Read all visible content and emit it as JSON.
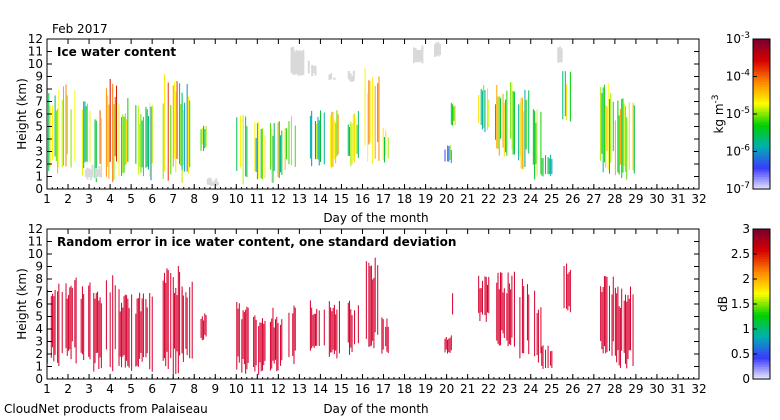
{
  "header": {
    "date": "Feb 2017"
  },
  "footer": {
    "credit": "CloudNet products from Palaiseau"
  },
  "chart_data": [
    {
      "type": "heatmap",
      "title": "Ice water content",
      "xlabel": "Day of the month",
      "ylabel": "Height (km)",
      "xlim": [
        1,
        32
      ],
      "ylim": [
        0,
        12
      ],
      "xticks": [
        1,
        2,
        3,
        4,
        5,
        6,
        7,
        8,
        9,
        10,
        11,
        12,
        13,
        14,
        15,
        16,
        17,
        18,
        19,
        20,
        21,
        22,
        23,
        24,
        25,
        26,
        27,
        28,
        29,
        30,
        31,
        32
      ],
      "yticks": [
        0,
        1,
        2,
        3,
        4,
        5,
        6,
        7,
        8,
        9,
        10,
        11,
        12
      ],
      "colorbar": {
        "units_base": "kg m",
        "units_exp": "-3",
        "scale": "log",
        "ticks": [
          {
            "base": "10",
            "exp": "-7"
          },
          {
            "base": "10",
            "exp": "-6"
          },
          {
            "base": "10",
            "exp": "-5"
          },
          {
            "base": "10",
            "exp": "-4"
          },
          {
            "base": "10",
            "exp": "-3"
          }
        ],
        "colors": [
          "#e8e8ff",
          "#3a3aff",
          "#00b0b0",
          "#00d000",
          "#ffff00",
          "#ff8800",
          "#d80000",
          "#7a0030"
        ]
      },
      "uncertain_color": "#d9d9d9",
      "cloud_events": [
        {
          "x0": 1.0,
          "x1": 1.6,
          "bottom": 0.9,
          "top": 8.2,
          "log_iwc": -5.0
        },
        {
          "x0": 1.7,
          "x1": 2.4,
          "bottom": 1.2,
          "top": 8.5,
          "log_iwc": -4.9
        },
        {
          "x0": 2.6,
          "x1": 3.1,
          "bottom": 1.0,
          "top": 8.0,
          "log_iwc": -5.1
        },
        {
          "x0": 3.2,
          "x1": 3.6,
          "bottom": 0.5,
          "top": 7.0,
          "log_iwc": -4.7
        },
        {
          "x0": 3.8,
          "x1": 4.3,
          "bottom": 0.4,
          "top": 9.3,
          "log_iwc": -4.3
        },
        {
          "x0": 4.4,
          "x1": 5.0,
          "bottom": 0.6,
          "top": 7.3,
          "log_iwc": -5.2
        },
        {
          "x0": 5.2,
          "x1": 6.0,
          "bottom": 0.5,
          "top": 7.0,
          "log_iwc": -5.4
        },
        {
          "x0": 6.5,
          "x1": 7.4,
          "bottom": 0.4,
          "top": 9.2,
          "log_iwc": -4.5
        },
        {
          "x0": 7.4,
          "x1": 7.9,
          "bottom": 1.2,
          "top": 8.4,
          "log_iwc": -5.3
        },
        {
          "x0": 8.3,
          "x1": 8.6,
          "bottom": 3.0,
          "top": 5.3,
          "log_iwc": -5.0
        },
        {
          "x0": 10.0,
          "x1": 10.6,
          "bottom": 0.3,
          "top": 6.5,
          "log_iwc": -4.8
        },
        {
          "x0": 10.8,
          "x1": 11.4,
          "bottom": 0.2,
          "top": 5.5,
          "log_iwc": -5.3
        },
        {
          "x0": 11.6,
          "x1": 12.2,
          "bottom": 0.2,
          "top": 5.8,
          "log_iwc": -5.1
        },
        {
          "x0": 12.3,
          "x1": 12.8,
          "bottom": 1.0,
          "top": 6.5,
          "log_iwc": -4.9
        },
        {
          "x0": 13.5,
          "x1": 14.2,
          "bottom": 1.8,
          "top": 6.5,
          "log_iwc": -5.4
        },
        {
          "x0": 14.4,
          "x1": 14.9,
          "bottom": 1.6,
          "top": 6.3,
          "log_iwc": -5.0
        },
        {
          "x0": 15.3,
          "x1": 15.8,
          "bottom": 1.8,
          "top": 6.3,
          "log_iwc": -5.2
        },
        {
          "x0": 16.1,
          "x1": 16.8,
          "bottom": 2.0,
          "top": 9.8,
          "log_iwc": -4.6
        },
        {
          "x0": 16.9,
          "x1": 17.2,
          "bottom": 2.0,
          "top": 5.0,
          "log_iwc": -5.3
        },
        {
          "x0": 19.9,
          "x1": 20.2,
          "bottom": 2.0,
          "top": 3.5,
          "log_iwc": -5.6
        },
        {
          "x0": 20.2,
          "x1": 20.4,
          "bottom": 5.0,
          "top": 7.0,
          "log_iwc": -5.0
        },
        {
          "x0": 21.5,
          "x1": 22.0,
          "bottom": 4.5,
          "top": 8.3,
          "log_iwc": -5.2
        },
        {
          "x0": 22.3,
          "x1": 23.2,
          "bottom": 2.5,
          "top": 8.6,
          "log_iwc": -5.0
        },
        {
          "x0": 23.4,
          "x1": 23.9,
          "bottom": 1.5,
          "top": 8.2,
          "log_iwc": -5.1
        },
        {
          "x0": 24.1,
          "x1": 24.5,
          "bottom": 0.5,
          "top": 7.3,
          "log_iwc": -4.9
        },
        {
          "x0": 24.5,
          "x1": 25.0,
          "bottom": 0.8,
          "top": 2.8,
          "log_iwc": -5.6
        },
        {
          "x0": 25.5,
          "x1": 25.9,
          "bottom": 5.2,
          "top": 9.5,
          "log_iwc": -5.3
        },
        {
          "x0": 27.3,
          "x1": 27.9,
          "bottom": 1.2,
          "top": 8.7,
          "log_iwc": -5.1
        },
        {
          "x0": 28.0,
          "x1": 28.9,
          "bottom": 0.6,
          "top": 7.5,
          "log_iwc": -4.8
        }
      ],
      "uncertain_events": [
        {
          "x0": 2.8,
          "x1": 3.6,
          "bottom": 0.7,
          "top": 2.0
        },
        {
          "x0": 8.6,
          "x1": 9.4,
          "bottom": 0.1,
          "top": 1.0
        },
        {
          "x0": 12.5,
          "x1": 13.2,
          "bottom": 9.0,
          "top": 11.5
        },
        {
          "x0": 13.4,
          "x1": 13.8,
          "bottom": 9.0,
          "top": 10.3
        },
        {
          "x0": 14.3,
          "x1": 14.7,
          "bottom": 8.6,
          "top": 9.3
        },
        {
          "x0": 15.3,
          "x1": 15.6,
          "bottom": 8.5,
          "top": 9.5
        },
        {
          "x0": 18.4,
          "x1": 18.8,
          "bottom": 10.0,
          "top": 11.5
        },
        {
          "x0": 19.4,
          "x1": 19.7,
          "bottom": 10.5,
          "top": 11.8
        },
        {
          "x0": 25.1,
          "x1": 25.5,
          "bottom": 10.0,
          "top": 11.5
        }
      ]
    },
    {
      "type": "heatmap",
      "title": "Random error in ice water content, one standard deviation",
      "xlabel": "Day of the month",
      "ylabel": "Height (km)",
      "xlim": [
        1,
        32
      ],
      "ylim": [
        0,
        12
      ],
      "xticks": [
        1,
        2,
        3,
        4,
        5,
        6,
        7,
        8,
        9,
        10,
        11,
        12,
        13,
        14,
        15,
        16,
        17,
        18,
        19,
        20,
        21,
        22,
        23,
        24,
        25,
        26,
        27,
        28,
        29,
        30,
        31,
        32
      ],
      "yticks": [
        0,
        1,
        2,
        3,
        4,
        5,
        6,
        7,
        8,
        9,
        10,
        11,
        12
      ],
      "colorbar": {
        "units": "dB",
        "scale": "linear",
        "range": [
          0,
          3
        ],
        "ticks": [
          "0",
          "0.5",
          "1",
          "1.5",
          "2",
          "2.5",
          "3"
        ],
        "colors": [
          "#f0f0ff",
          "#3a3aff",
          "#00b0b0",
          "#00d000",
          "#ffff00",
          "#ff8800",
          "#d80000",
          "#7a0030"
        ]
      },
      "dominant_value_db": 2.6,
      "fill_color": "#d6002e"
    }
  ]
}
